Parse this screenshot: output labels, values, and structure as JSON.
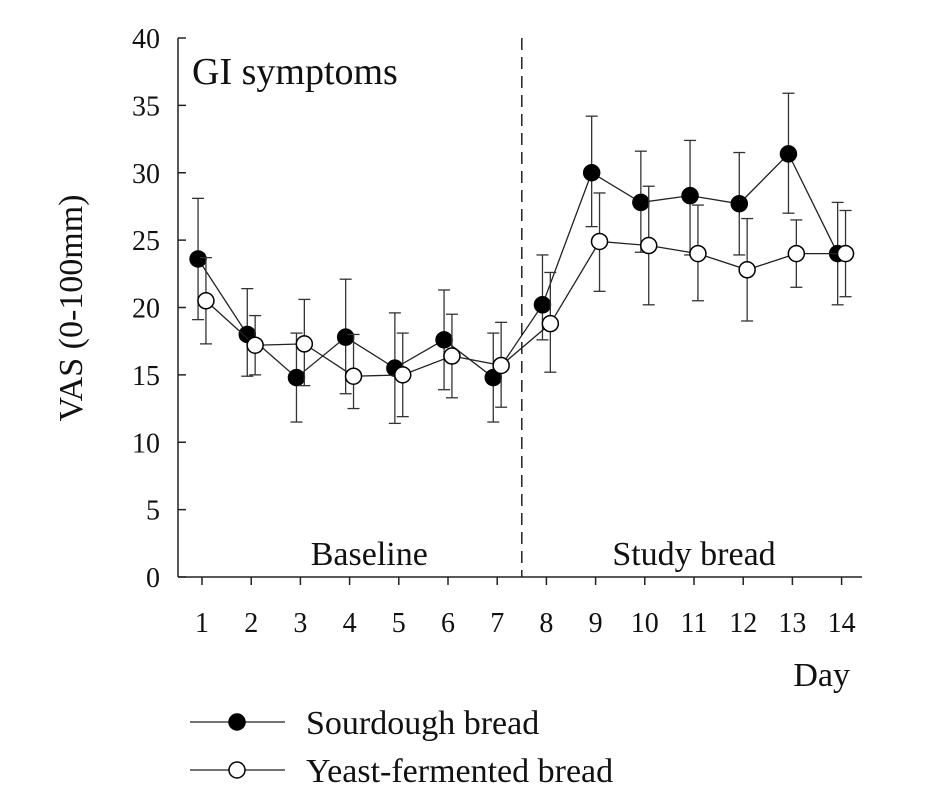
{
  "chart_data": {
    "type": "line",
    "annotation_title": "GI symptoms",
    "xlabel": "Day",
    "ylabel": "VAS (0-100mm)",
    "x": [
      1,
      2,
      3,
      4,
      5,
      6,
      7,
      8,
      9,
      10,
      11,
      12,
      13,
      14
    ],
    "x_tick_labels": [
      "1",
      "2",
      "3",
      "4",
      "5",
      "6",
      "7",
      "8",
      "9",
      "10",
      "11",
      "12",
      "13",
      "14"
    ],
    "ylim": [
      0,
      40
    ],
    "y_ticks": [
      0,
      5,
      10,
      15,
      20,
      25,
      30,
      35,
      40
    ],
    "y_tick_labels": [
      "0",
      "5",
      "10",
      "15",
      "20",
      "25",
      "30",
      "35",
      "40"
    ],
    "grid": false,
    "legend_position": "bottom",
    "phase_divider_x": 7.5,
    "phases": [
      {
        "label": "Baseline",
        "center_x": 4.4
      },
      {
        "label": "Study bread",
        "center_x": 11.0
      }
    ],
    "series": [
      {
        "name": "Sourdough bread",
        "marker": "filled-circle",
        "color": "#000000",
        "x_offset": -0.08,
        "values": [
          23.6,
          18.0,
          14.8,
          17.8,
          15.5,
          17.6,
          14.8,
          20.2,
          30.0,
          27.8,
          28.3,
          27.7,
          31.4,
          24.0
        ],
        "err_low": [
          19.1,
          14.9,
          11.5,
          13.6,
          11.4,
          13.9,
          11.5,
          17.6,
          26.0,
          24.1,
          23.9,
          23.9,
          27.0,
          20.2
        ],
        "err_high": [
          28.1,
          21.4,
          18.1,
          22.1,
          19.6,
          21.3,
          18.1,
          23.9,
          34.2,
          31.6,
          32.4,
          31.5,
          35.9,
          27.8
        ]
      },
      {
        "name": "Yeast-fermented bread",
        "marker": "open-circle",
        "color": "#000000",
        "x_offset": 0.08,
        "values": [
          20.5,
          17.2,
          17.3,
          14.9,
          15.0,
          16.4,
          15.7,
          18.8,
          24.9,
          24.6,
          24.0,
          22.8,
          24.0,
          24.0
        ],
        "err_low": [
          17.3,
          15.0,
          14.2,
          12.5,
          11.9,
          13.3,
          12.6,
          15.2,
          21.2,
          20.2,
          20.5,
          19.0,
          21.5,
          20.8
        ],
        "err_high": [
          23.7,
          19.4,
          20.6,
          18.0,
          18.1,
          19.5,
          18.9,
          22.6,
          28.5,
          29.0,
          27.6,
          26.6,
          26.5,
          27.2
        ]
      }
    ]
  }
}
